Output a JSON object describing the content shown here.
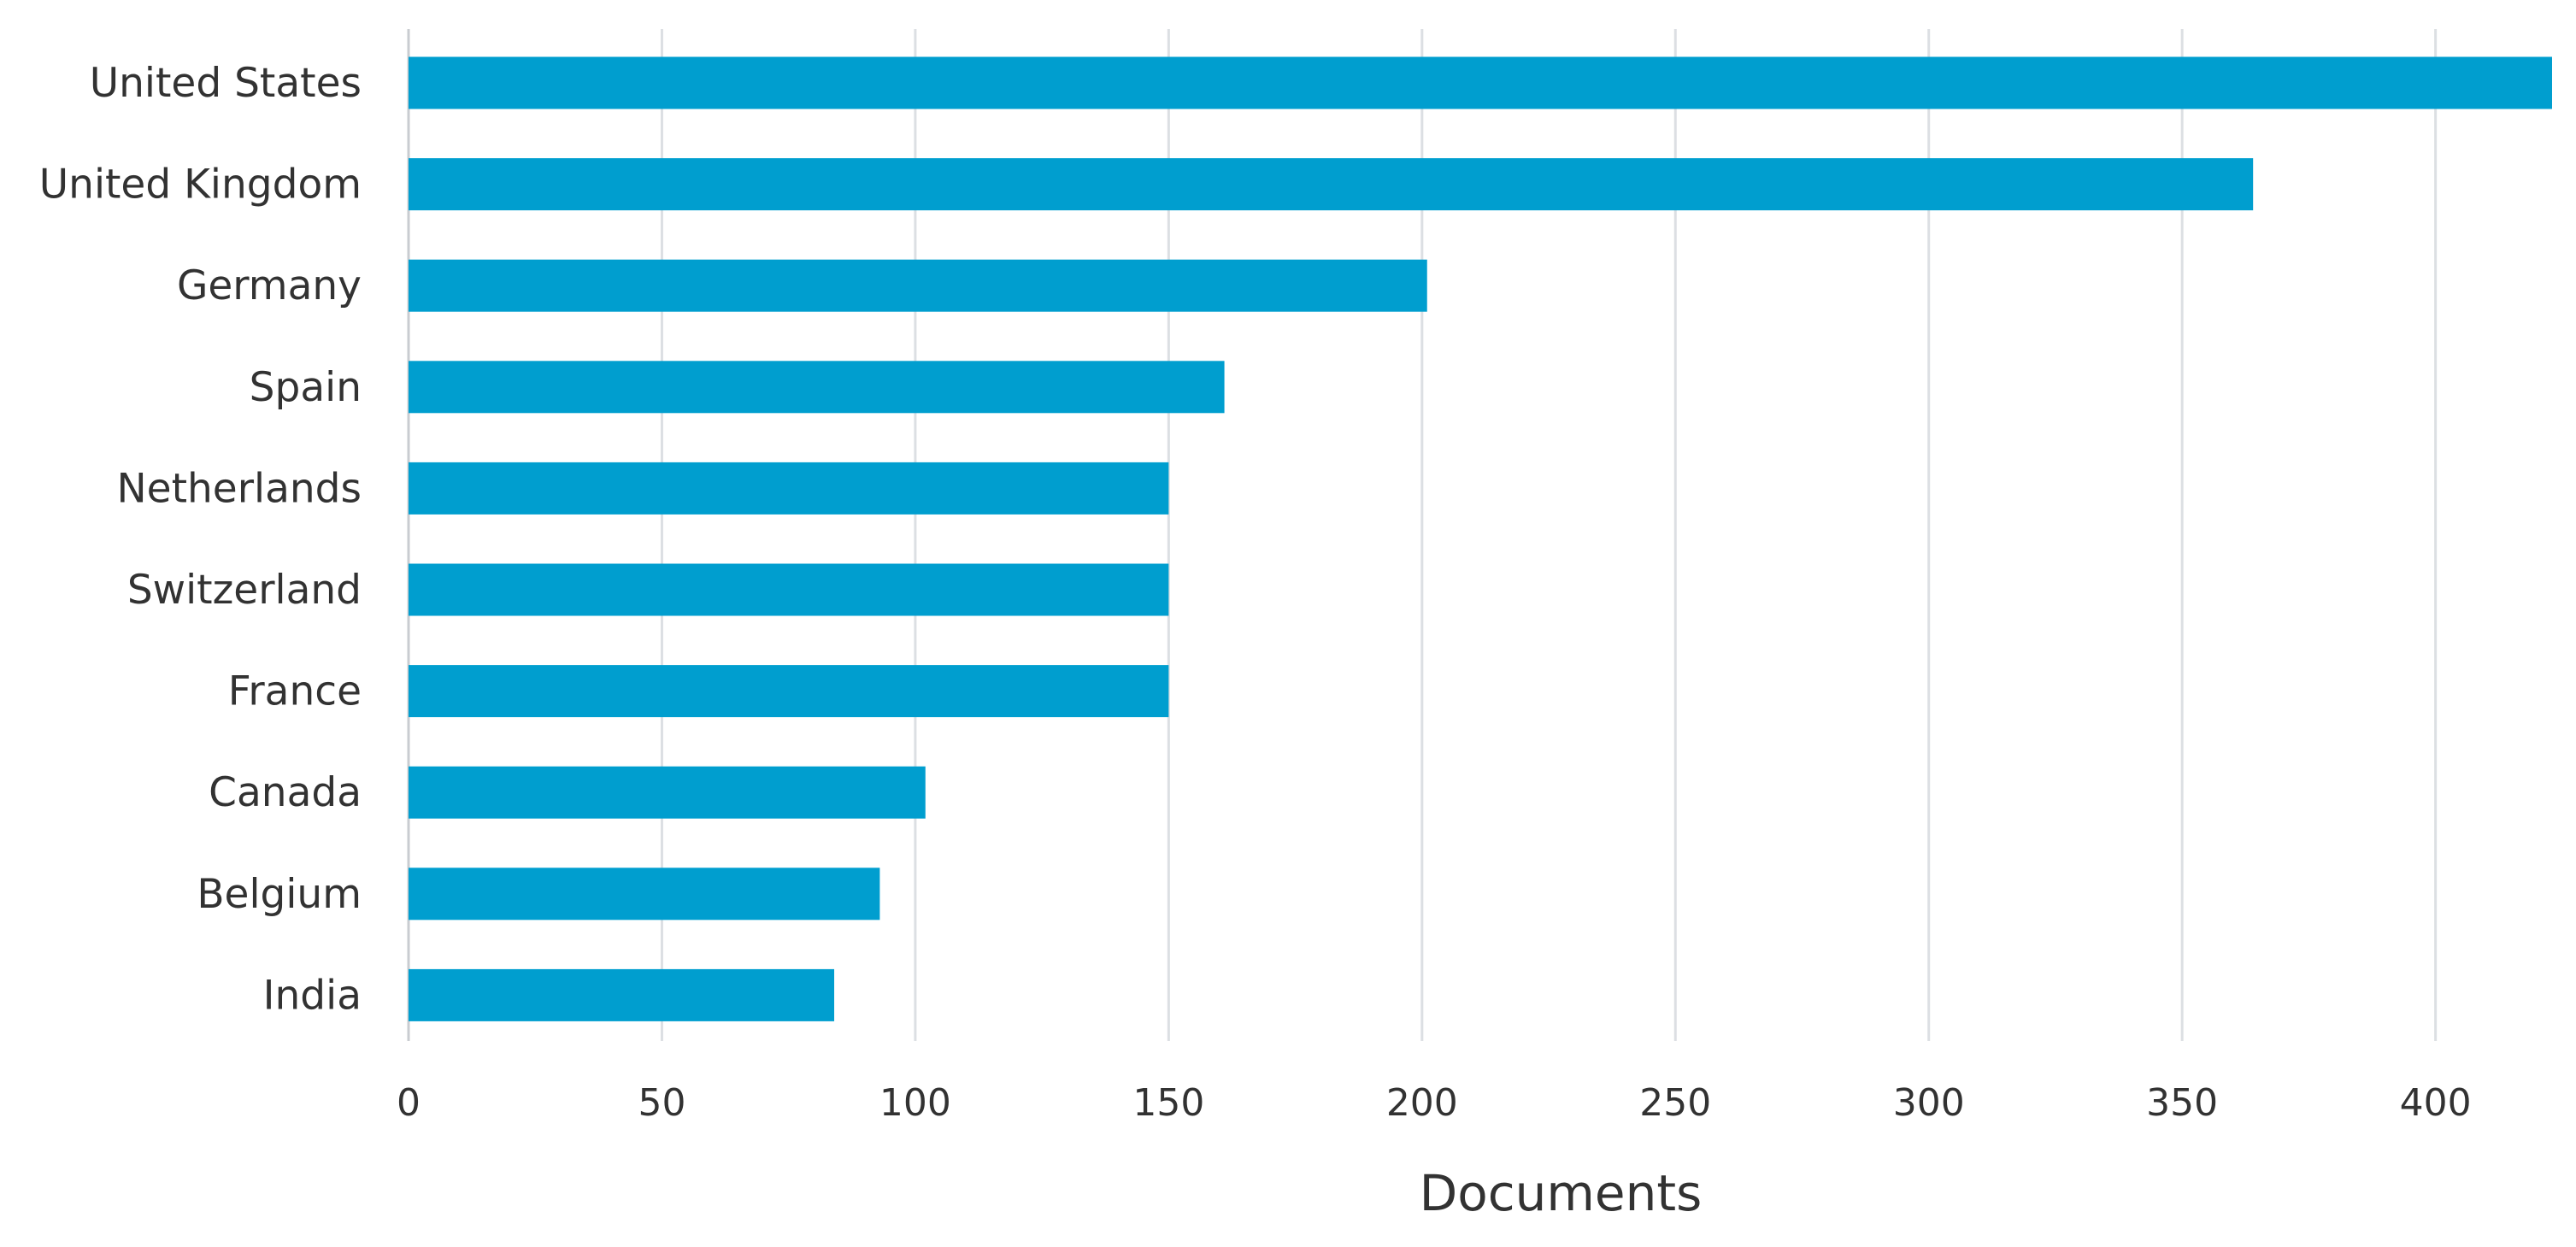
{
  "chart_data": {
    "type": "bar",
    "orientation": "horizontal",
    "categories": [
      "United States",
      "United Kingdom",
      "Germany",
      "Spain",
      "Netherlands",
      "Switzerland",
      "France",
      "Canada",
      "Belgium",
      "India"
    ],
    "values": [
      423,
      364,
      201,
      161,
      150,
      150,
      150,
      102,
      93,
      84
    ],
    "xlabel": "Documents",
    "ylabel": "",
    "xlim": [
      0,
      423
    ],
    "xticks": [
      0,
      50,
      100,
      150,
      200,
      250,
      300,
      350,
      400
    ],
    "grid": true,
    "legend": false,
    "bar_color": "#009ecf"
  }
}
